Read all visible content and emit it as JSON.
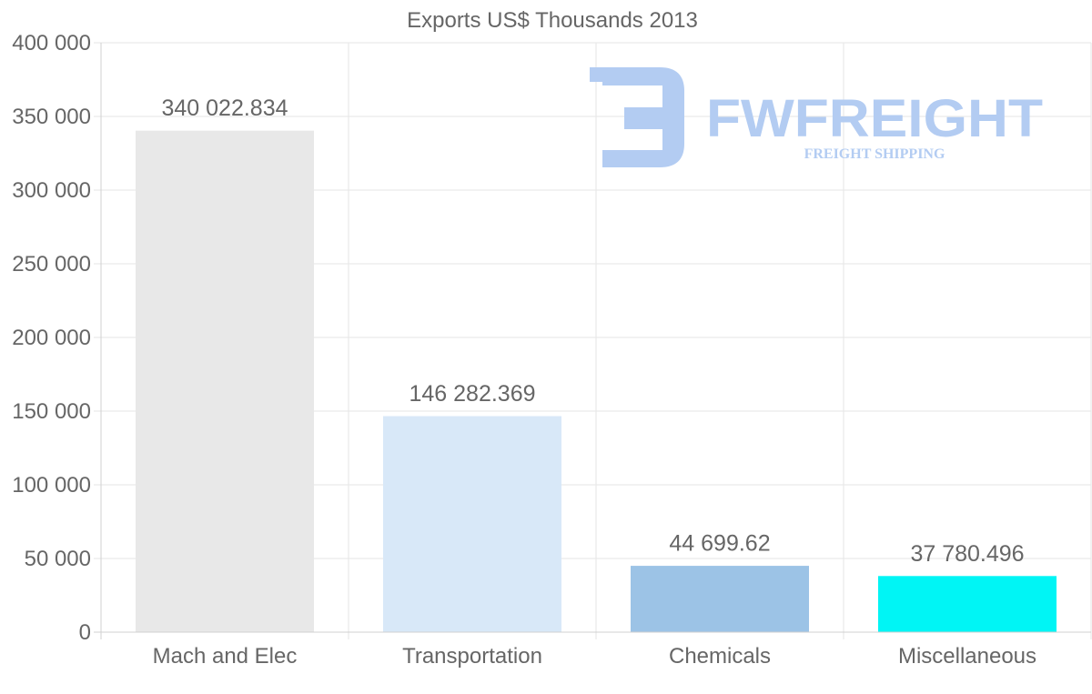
{
  "chart_data": {
    "type": "bar",
    "title": "Exports US$ Thousands 2013",
    "categories": [
      "Mach and Elec",
      "Transportation",
      "Chemicals",
      "Miscellaneous"
    ],
    "values": [
      340022.834,
      146282.369,
      44699.62,
      37780.496
    ],
    "value_labels": [
      "340 022.834",
      "146 282.369",
      "44 699.62",
      "37 780.496"
    ],
    "bar_colors": [
      "#e8e8e8",
      "#d8e8f8",
      "#9cc3e6",
      "#00f5f5"
    ],
    "ylim": [
      0,
      400000
    ],
    "yticks": [
      0,
      50000,
      100000,
      150000,
      200000,
      250000,
      300000,
      350000,
      400000
    ],
    "ytick_labels": [
      "0",
      "50 000",
      "100 000",
      "150 000",
      "200 000",
      "250 000",
      "300 000",
      "350 000",
      "400 000"
    ],
    "xlabel": "",
    "ylabel": "",
    "grid": true
  },
  "watermark": {
    "brand": "FWFREIGHT",
    "tagline": "FREIGHT SHIPPING",
    "color": "#b3ccf2"
  }
}
